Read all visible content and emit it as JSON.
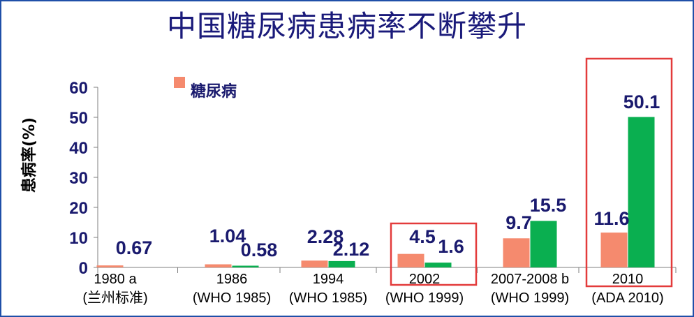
{
  "title": "中国糖尿病患病率不断攀升",
  "chart_data": {
    "type": "bar",
    "ylabel": "患病率(%)",
    "ylim": [
      0,
      60
    ],
    "yticks": [
      0,
      10,
      20,
      30,
      40,
      50,
      60
    ],
    "categories": [
      [
        "1980 a",
        "(兰州标准)"
      ],
      [
        "1986",
        "(WHO 1985)"
      ],
      [
        "1994",
        "(WHO 1985)"
      ],
      [
        "2002",
        "(WHO 1999)"
      ],
      [
        "2007-2008 b",
        "(WHO 1999)"
      ],
      [
        "2010",
        "(ADA 2010)"
      ]
    ],
    "series": [
      {
        "name": "糖尿病",
        "color": "#f58a6e",
        "values": [
          0.67,
          1.04,
          2.28,
          4.5,
          9.7,
          11.6
        ]
      },
      {
        "color": "#0aaf50",
        "values": [
          null,
          0.58,
          2.12,
          1.6,
          15.5,
          50.1
        ]
      }
    ],
    "data_labels": [
      [
        "0.67",
        null
      ],
      [
        "1.04",
        "0.58"
      ],
      [
        "2.28",
        "2.12"
      ],
      [
        "4.5",
        "1.6"
      ],
      [
        "9.7",
        "15.5"
      ],
      [
        "11.6",
        "50.1"
      ]
    ],
    "legend": {
      "position": "top-left",
      "entries": [
        "糖尿病"
      ]
    },
    "highlight_color": "#e33b3b",
    "highlighted_categories": [
      3,
      5
    ],
    "grid": false
  }
}
